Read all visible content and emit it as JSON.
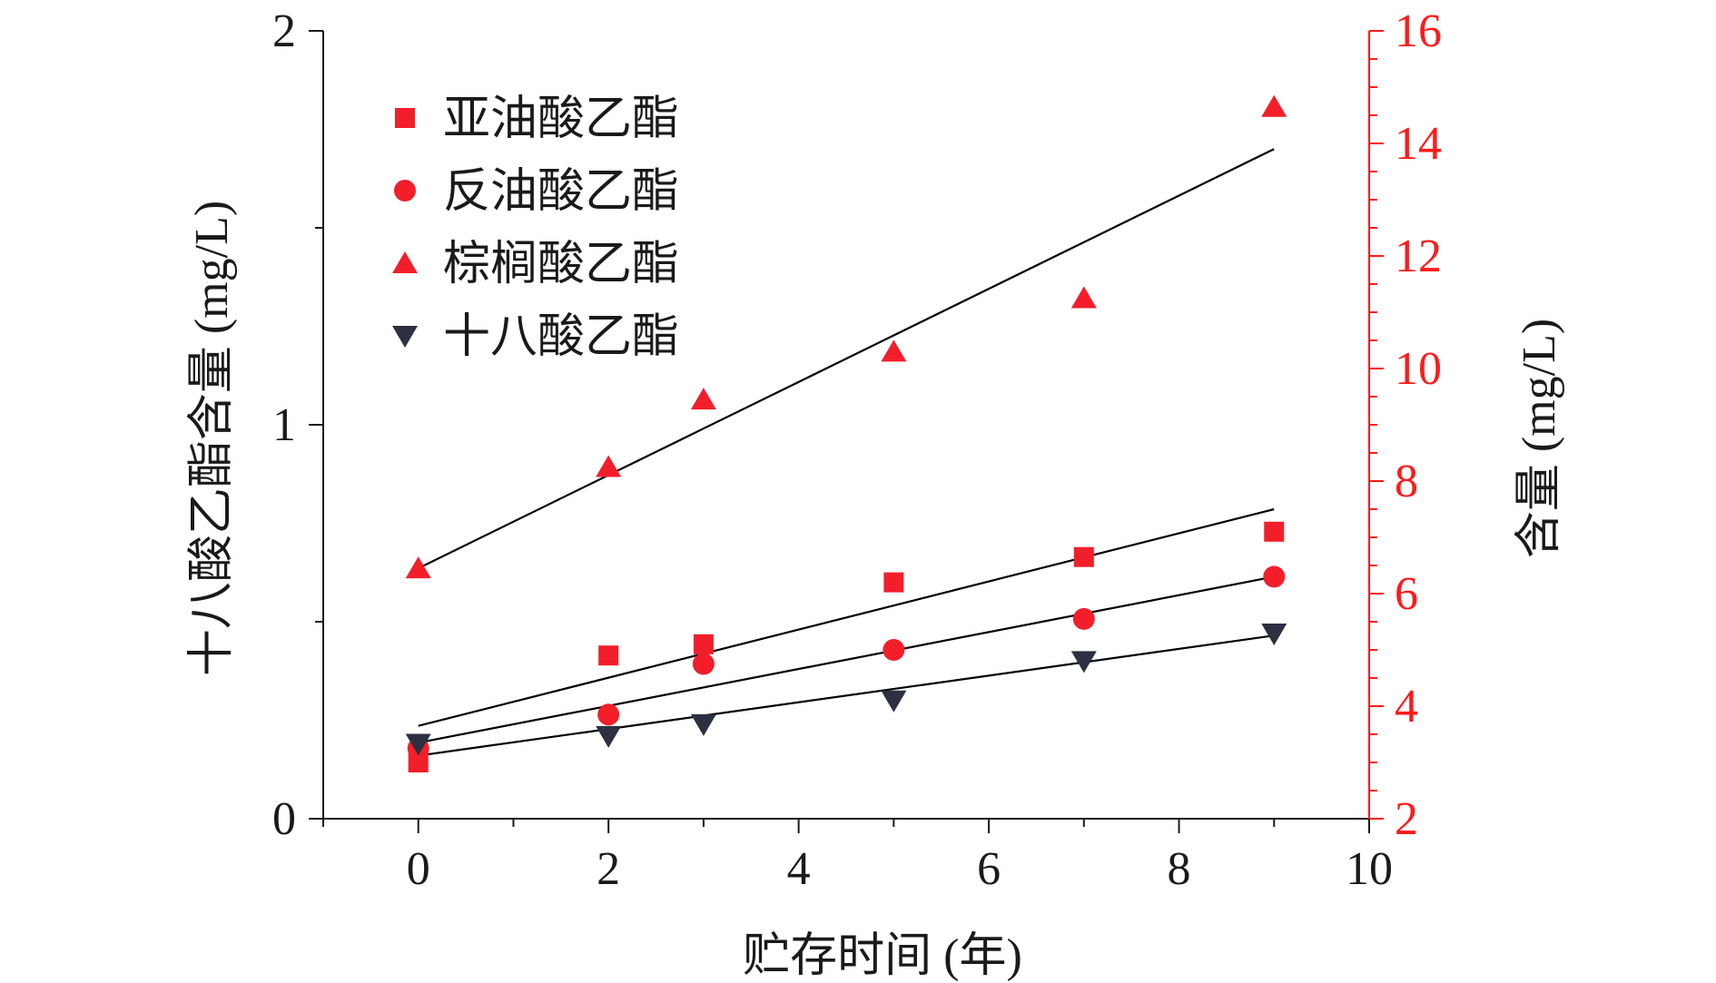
{
  "colors": {
    "axis": "#1a1a1a",
    "right_axis": "#ff1a1a",
    "red_marker": "#f21f2b",
    "dark_marker": "#2c3040",
    "fit_line": "#000000"
  },
  "chart_data": {
    "type": "scatter",
    "title": "",
    "xlabel": "贮存时间 (年)",
    "ylabel_left": "十八酸乙酯含量 (mg/L)",
    "ylabel_right": "含量 (mg/L)",
    "xlim": [
      -1,
      10
    ],
    "ylim_left": [
      0,
      2
    ],
    "ylim_right": [
      2,
      16
    ],
    "x_ticks": [
      0,
      2,
      4,
      6,
      8,
      10
    ],
    "y_left_ticks": [
      0,
      1,
      2
    ],
    "y_right_ticks": [
      2,
      4,
      6,
      8,
      10,
      12,
      14,
      16
    ],
    "legend_position": "top-left",
    "series": [
      {
        "name": "亚油酸乙酯",
        "axis": "right",
        "marker": "square",
        "x": [
          0,
          2,
          3,
          5,
          7,
          9
        ],
        "y": [
          3.0,
          4.9,
          5.1,
          6.2,
          6.65,
          7.1
        ],
        "fit": [
          [
            0,
            3.65
          ],
          [
            9,
            7.5
          ]
        ]
      },
      {
        "name": "反油酸乙酯",
        "axis": "right",
        "marker": "circle",
        "x": [
          0,
          2,
          3,
          5,
          7,
          9
        ],
        "y": [
          3.25,
          3.85,
          4.75,
          5.0,
          5.55,
          6.3
        ],
        "fit": [
          [
            0,
            3.35
          ],
          [
            9,
            6.3
          ]
        ]
      },
      {
        "name": "棕榈酸乙酯",
        "axis": "right",
        "marker": "triangle-up",
        "x": [
          0,
          2,
          3,
          5,
          7,
          9
        ],
        "y": [
          6.45,
          8.25,
          9.45,
          10.3,
          11.25,
          14.65
        ],
        "fit": [
          [
            0,
            6.45
          ],
          [
            9,
            13.9
          ]
        ]
      },
      {
        "name": "十八酸乙酯",
        "axis": "left",
        "marker": "triangle-down",
        "x": [
          0,
          2,
          3,
          5,
          7,
          9
        ],
        "y": [
          0.19,
          0.21,
          0.24,
          0.3,
          0.4,
          0.47
        ],
        "fit": [
          [
            0,
            0.16
          ],
          [
            9,
            0.465
          ]
        ]
      }
    ]
  }
}
